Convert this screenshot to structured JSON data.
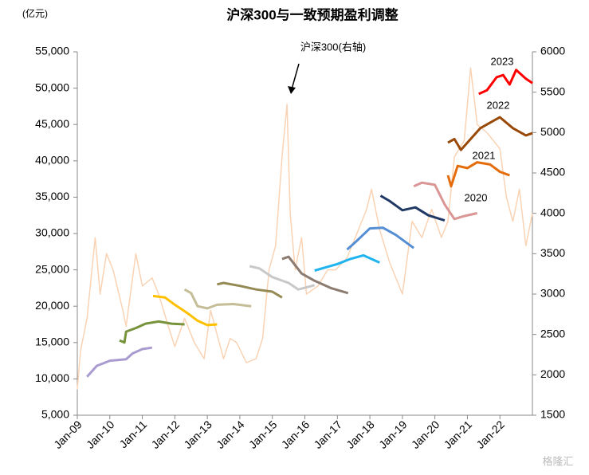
{
  "chart_data": {
    "type": "line",
    "title": "沪深300与一致预期盈利调整",
    "y_unit": "(亿元)",
    "annotation": "沪深300(右轴)",
    "watermark": "格隆汇",
    "xlim": [
      2009,
      2023
    ],
    "xticks": [
      {
        "value": 2009,
        "label": "Jan-09"
      },
      {
        "value": 2010,
        "label": "Jan-10"
      },
      {
        "value": 2011,
        "label": "Jan-11"
      },
      {
        "value": 2012,
        "label": "Jan-12"
      },
      {
        "value": 2013,
        "label": "Jan-13"
      },
      {
        "value": 2014,
        "label": "Jan-14"
      },
      {
        "value": 2015,
        "label": "Jan-15"
      },
      {
        "value": 2016,
        "label": "Jan-16"
      },
      {
        "value": 2017,
        "label": "Jan-17"
      },
      {
        "value": 2018,
        "label": "Jan-18"
      },
      {
        "value": 2019,
        "label": "Jan-19"
      },
      {
        "value": 2020,
        "label": "Jan-20"
      },
      {
        "value": 2021,
        "label": "Jan-21"
      },
      {
        "value": 2022,
        "label": "Jan-22"
      }
    ],
    "ylim": [
      5000,
      55000
    ],
    "yticks": [
      {
        "value": 5000,
        "label": "5,000"
      },
      {
        "value": 10000,
        "label": "10,000"
      },
      {
        "value": 15000,
        "label": "15,000"
      },
      {
        "value": 20000,
        "label": "20,000"
      },
      {
        "value": 25000,
        "label": "25,000"
      },
      {
        "value": 30000,
        "label": "30,000"
      },
      {
        "value": 35000,
        "label": "35,000"
      },
      {
        "value": 40000,
        "label": "40,000"
      },
      {
        "value": 45000,
        "label": "45,000"
      },
      {
        "value": 50000,
        "label": "50,000"
      },
      {
        "value": 55000,
        "label": "55,000"
      }
    ],
    "y2lim": [
      1500,
      6000
    ],
    "y2ticks": [
      1500,
      2000,
      2500,
      3000,
      3500,
      4000,
      4500,
      5000,
      5500,
      6000
    ],
    "series": [
      {
        "axis": "y2",
        "color": "#fad3b4",
        "x": [
          2009.0,
          2009.1,
          2009.3,
          2009.55,
          2009.7,
          2009.9,
          2010.1,
          2010.4,
          2010.5,
          2010.8,
          2011.0,
          2011.3,
          2011.5,
          2011.8,
          2012.0,
          2012.3,
          2012.6,
          2012.9,
          2013.1,
          2013.5,
          2013.7,
          2013.9,
          2014.2,
          2014.5,
          2014.7,
          2014.9,
          2015.1,
          2015.3,
          2015.45,
          2015.55,
          2015.7,
          2015.9,
          2016.05,
          2016.4,
          2016.7,
          2016.95,
          2017.3,
          2017.6,
          2017.9,
          2018.05,
          2018.3,
          2018.6,
          2018.9,
          2019.0,
          2019.3,
          2019.6,
          2019.9,
          2020.2,
          2020.4,
          2020.6,
          2020.9,
          2021.1,
          2021.3,
          2021.6,
          2021.8,
          2022.0,
          2022.2,
          2022.4,
          2022.6,
          2022.8,
          2022.9,
          2023.0
        ],
        "values": [
          1820,
          2300,
          2700,
          3700,
          3000,
          3500,
          3300,
          2800,
          2600,
          3500,
          3100,
          3200,
          3000,
          2600,
          2350,
          2700,
          2400,
          2200,
          2800,
          2200,
          2450,
          2400,
          2150,
          2200,
          2450,
          3300,
          3600,
          4700,
          5350,
          4000,
          3300,
          3700,
          3000,
          3100,
          3300,
          3300,
          3450,
          3750,
          4050,
          4300,
          3800,
          3400,
          3100,
          3000,
          3900,
          3700,
          4050,
          3700,
          3900,
          4700,
          4900,
          5800,
          5100,
          5000,
          4900,
          4800,
          4200,
          3900,
          4300,
          3600,
          3800,
          4000
        ]
      },
      {
        "color": "#a99bd0",
        "x": [
          2009.3,
          2009.6,
          2010.0,
          2010.5,
          2010.7,
          2011.0,
          2011.3
        ],
        "values": [
          10300,
          11800,
          12500,
          12700,
          13500,
          14100,
          14300
        ]
      },
      {
        "color": "#77933c",
        "x": [
          2010.3,
          2010.45,
          2010.5,
          2010.8,
          2011.1,
          2011.5,
          2011.9,
          2012.3
        ],
        "values": [
          15300,
          15000,
          16500,
          17000,
          17600,
          17900,
          17600,
          17500
        ]
      },
      {
        "color": "#ffc000",
        "x": [
          2011.33,
          2011.7,
          2012.0,
          2012.4,
          2012.7,
          2013.0,
          2013.3
        ],
        "values": [
          21400,
          21200,
          20200,
          19000,
          18000,
          17400,
          17500
        ]
      },
      {
        "color": "#c4bd97",
        "x": [
          2012.3,
          2012.5,
          2012.7,
          2013.0,
          2013.3,
          2013.8,
          2014.35
        ],
        "values": [
          22300,
          21800,
          20000,
          19700,
          20200,
          20300,
          20000
        ]
      },
      {
        "color": "#948a54",
        "x": [
          2013.3,
          2013.5,
          2014.0,
          2014.5,
          2015.0,
          2015.3
        ],
        "values": [
          23000,
          23200,
          22800,
          22300,
          22000,
          21200
        ]
      },
      {
        "color": "#c8c8c8",
        "x": [
          2014.3,
          2014.6,
          2015.0,
          2015.5,
          2015.8,
          2016.3
        ],
        "values": [
          25500,
          25200,
          24000,
          23200,
          22300,
          22900
        ]
      },
      {
        "color": "#8c7b70",
        "x": [
          2015.3,
          2015.5,
          2015.9,
          2016.3,
          2016.8,
          2017.33
        ],
        "values": [
          26500,
          26800,
          24500,
          23500,
          22500,
          21800
        ]
      },
      {
        "color": "#1fb4f0",
        "x": [
          2016.3,
          2016.6,
          2017.0,
          2017.4,
          2017.8,
          2018.3
        ],
        "values": [
          24900,
          25300,
          25800,
          26500,
          27000,
          26000
        ]
      },
      {
        "color": "#558ed5",
        "x": [
          2017.3,
          2017.6,
          2018.0,
          2018.4,
          2018.8,
          2019.35
        ],
        "values": [
          27800,
          29000,
          30700,
          30800,
          29800,
          28000
        ]
      },
      {
        "color": "#1f3864",
        "x": [
          2018.33,
          2018.6,
          2019.0,
          2019.4,
          2019.8,
          2020.3
        ],
        "values": [
          35200,
          34500,
          33200,
          33600,
          32500,
          31800
        ]
      },
      {
        "name": "2020",
        "color": "#d99694",
        "x": [
          2019.35,
          2019.6,
          2020.0,
          2020.3,
          2020.6,
          2020.9,
          2021.3
        ],
        "values": [
          36500,
          37000,
          36700,
          34000,
          32000,
          32400,
          32800
        ]
      },
      {
        "name": "2021",
        "color": "#e46c0a",
        "x": [
          2020.4,
          2020.5,
          2020.7,
          2021.0,
          2021.3,
          2021.7,
          2022.0,
          2022.3
        ],
        "values": [
          38000,
          36500,
          39300,
          39000,
          39800,
          39500,
          38500,
          38000
        ]
      },
      {
        "name": "2022",
        "color": "#984807",
        "x": [
          2020.4,
          2020.6,
          2020.8,
          2021.0,
          2021.4,
          2021.8,
          2022.0,
          2022.4,
          2022.8,
          2023.0
        ],
        "values": [
          42500,
          43000,
          41500,
          42500,
          44500,
          45500,
          46000,
          44500,
          43500,
          43800
        ]
      },
      {
        "name": "2023",
        "color": "#ff0000",
        "x": [
          2021.35,
          2021.6,
          2021.9,
          2022.1,
          2022.3,
          2022.5,
          2022.8,
          2023.0
        ],
        "values": [
          49200,
          49700,
          51500,
          51800,
          50500,
          52500,
          51300,
          50700
        ]
      }
    ]
  }
}
